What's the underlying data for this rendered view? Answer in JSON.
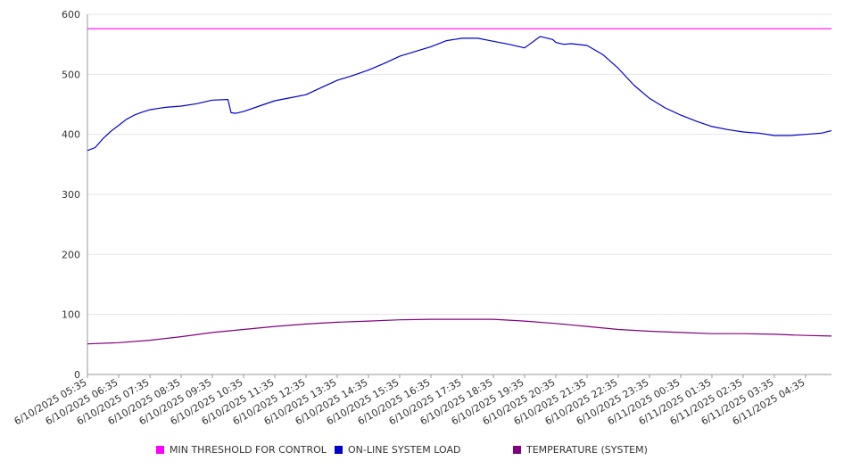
{
  "chart_data": {
    "type": "line",
    "ylim": [
      0,
      600
    ],
    "y_ticks": [
      "0",
      "100",
      "200",
      "300",
      "400",
      "500",
      "600"
    ],
    "y_tick_values": [
      0,
      100,
      200,
      300,
      400,
      500,
      600
    ],
    "x_tick_labels": [
      "6/10/2025 05:35",
      "6/10/2025 06:35",
      "6/10/2025 07:35",
      "6/10/2025 08:35",
      "6/10/2025 09:35",
      "6/10/2025 10:35",
      "6/10/2025 11:35",
      "6/10/2025 12:35",
      "6/10/2025 13:35",
      "6/10/2025 14:35",
      "6/10/2025 15:35",
      "6/10/2025 16:35",
      "6/10/2025 17:35",
      "6/10/2025 18:35",
      "6/10/2025 19:35",
      "6/10/2025 20:35",
      "6/10/2025 21:35",
      "6/10/2025 22:35",
      "6/10/2025 23:35",
      "6/11/2025 00:35",
      "6/11/2025 01:35",
      "6/11/2025 02:35",
      "6/11/2025 03:35",
      "6/11/2025 04:35"
    ],
    "x_range_hours": [
      0,
      23.83
    ],
    "grid": "horizontal",
    "legend_position": "bottom",
    "series": [
      {
        "name": "MIN THRESHOLD FOR CONTROL",
        "color": "#ff00ff",
        "x": [
          0,
          23.83
        ],
        "values": [
          576,
          576
        ]
      },
      {
        "name": "ON-LINE SYSTEM LOAD",
        "color": "#0000cc",
        "x": [
          0,
          0.25,
          0.5,
          0.75,
          1,
          1.25,
          1.5,
          1.75,
          2,
          2.25,
          2.5,
          3,
          3.5,
          4,
          4.5,
          4.6,
          4.75,
          5,
          5.5,
          6,
          6.5,
          7,
          7.5,
          8,
          8.5,
          9,
          9.5,
          10,
          10.5,
          11,
          11.5,
          12,
          12.5,
          13,
          13.5,
          14,
          14.5,
          14.9,
          15,
          15.25,
          15.5,
          16,
          16.5,
          17,
          17.5,
          18,
          18.5,
          19,
          19.5,
          20,
          20.5,
          21,
          21.5,
          22,
          22.5,
          23,
          23.5,
          23.83
        ],
        "values": [
          373,
          378,
          393,
          405,
          415,
          425,
          432,
          437,
          441,
          443,
          445,
          447,
          451,
          457,
          458,
          436,
          435,
          438,
          447,
          456,
          461,
          466,
          478,
          490,
          498,
          507,
          518,
          530,
          538,
          546,
          556,
          560,
          560,
          555,
          550,
          544,
          563,
          558,
          553,
          550,
          551,
          548,
          533,
          510,
          482,
          460,
          444,
          432,
          422,
          413,
          408,
          404,
          402,
          398,
          398,
          400,
          402,
          406
        ]
      },
      {
        "name": "TEMPERATURE (SYSTEM)",
        "color": "#800080",
        "x": [
          0,
          1,
          2,
          3,
          4,
          5,
          6,
          7,
          8,
          9,
          10,
          11,
          12,
          13,
          14,
          15,
          16,
          17,
          18,
          19,
          20,
          21,
          22,
          23,
          23.83
        ],
        "values": [
          51,
          53,
          57,
          63,
          70,
          75,
          80,
          84,
          87,
          89,
          91,
          92,
          92,
          92,
          89,
          85,
          80,
          75,
          72,
          70,
          68,
          68,
          67,
          65,
          64
        ]
      }
    ]
  }
}
